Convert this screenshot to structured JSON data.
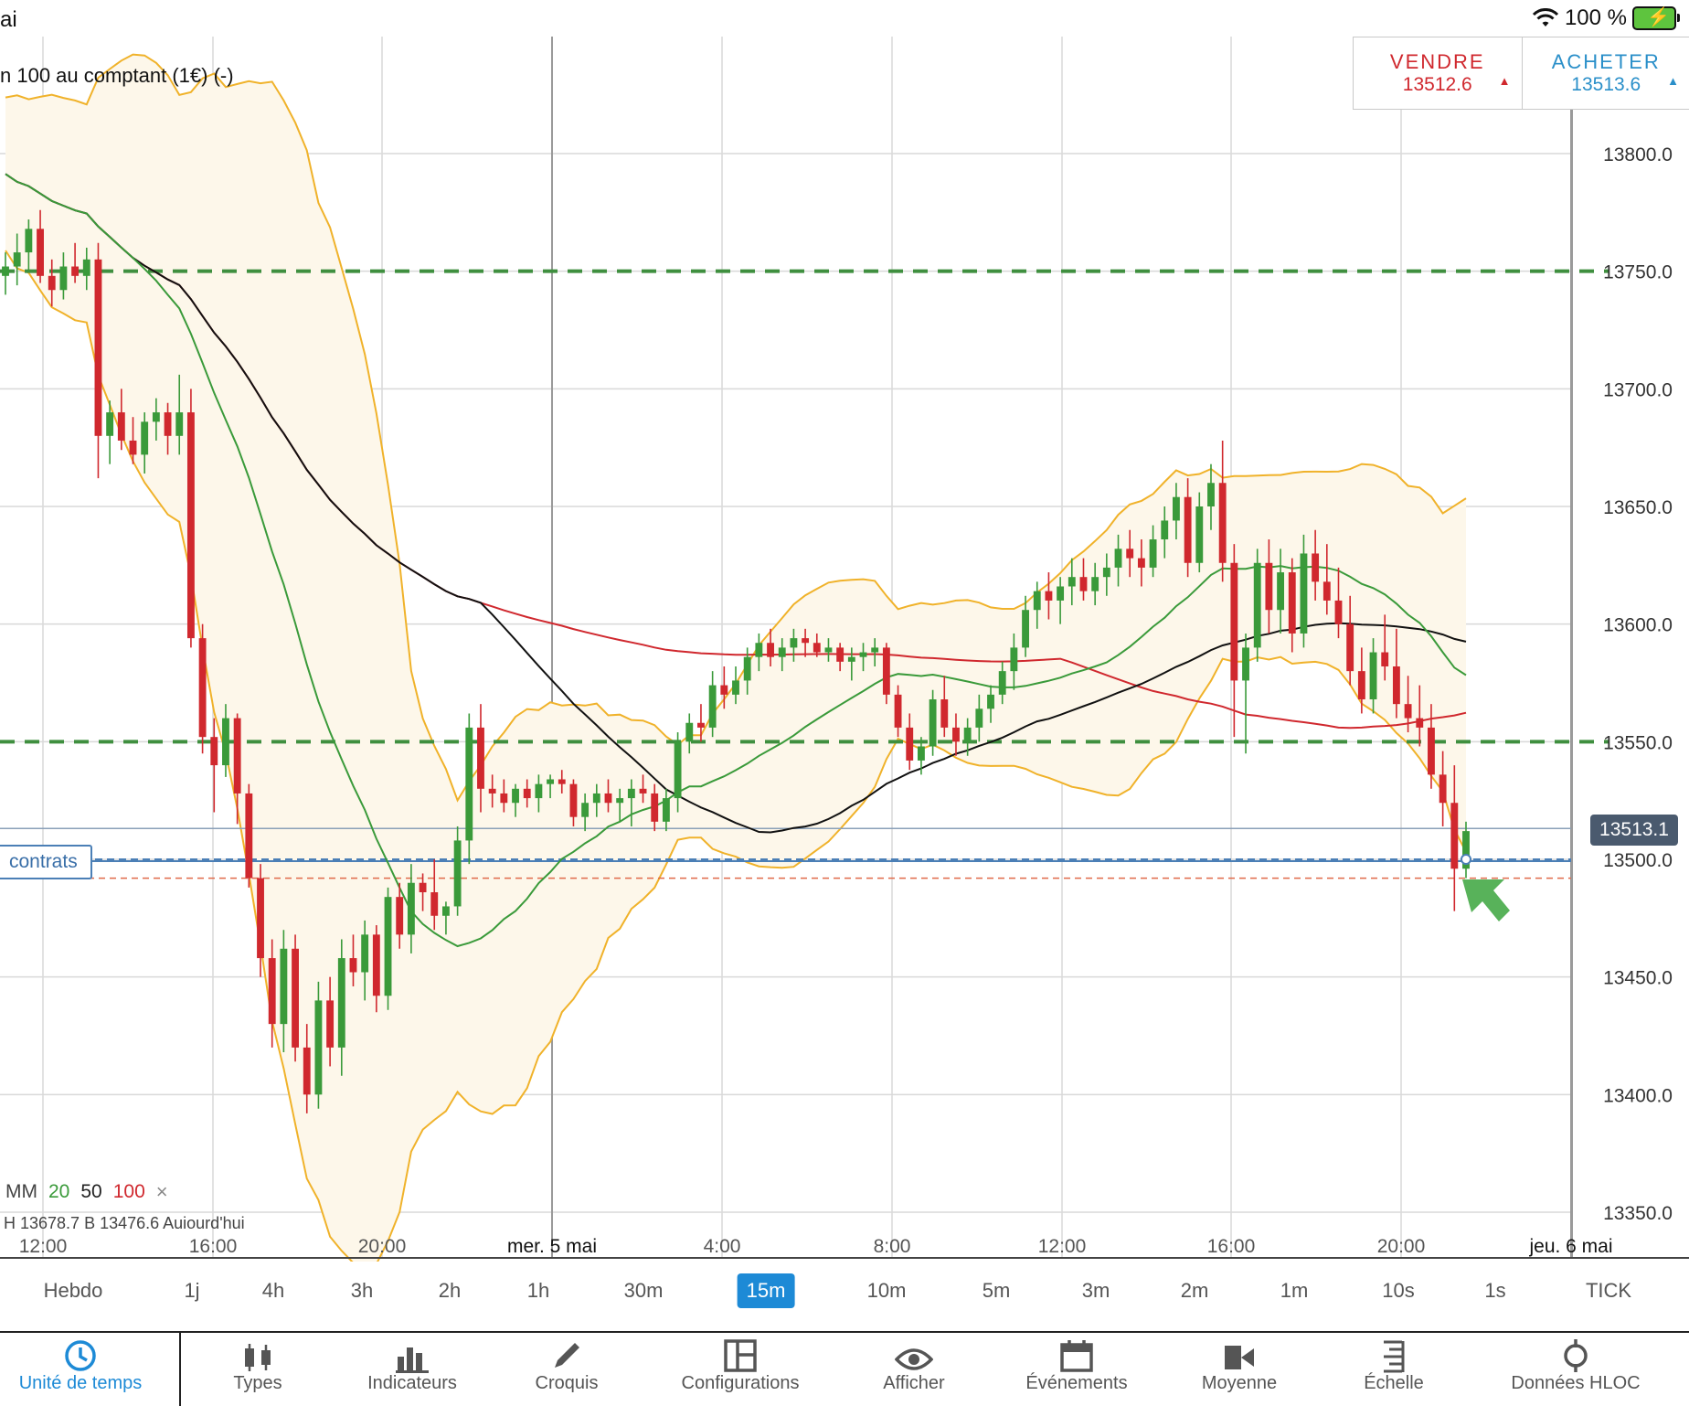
{
  "status": {
    "left_text": "ai",
    "battery_text": "100 %"
  },
  "instrument_label": "n 100 au comptant (1€) (-)",
  "trade": {
    "sell_label": "VENDRE",
    "sell_price": "13512.6",
    "buy_label": "ACHETER",
    "buy_price": "13513.6"
  },
  "current_price_tag": "13513.1",
  "position_label": "contrats",
  "legend": {
    "mm": "MM",
    "p20": "20",
    "p50": "50",
    "p100": "100",
    "close": "×"
  },
  "hloc_text": "H 13678.7    B 13476.6    Aujourd'hui",
  "colors": {
    "up": "#3a9a3a",
    "down": "#d0282e",
    "band": "#f0b22a",
    "mm20": "#3a9a3a",
    "mm50": "#111111",
    "mm100": "#d0282e",
    "accent": "#1d8ad6"
  },
  "chart_data": {
    "type": "candlestick",
    "y_ticks": [
      "13800.0",
      "13750.0",
      "13700.0",
      "13650.0",
      "13600.0",
      "13550.0",
      "13500.0",
      "13450.0",
      "13400.0",
      "13350.0"
    ],
    "y_range": [
      13340,
      13850
    ],
    "x_ticks": [
      "12:00",
      "16:00",
      "20:00",
      "mer. 5 mai",
      "4:00",
      "8:00",
      "12:00",
      "16:00",
      "20:00",
      "jeu. 6 mai"
    ],
    "horizontal_levels": [
      13750,
      13550
    ],
    "current_price": 13513.1,
    "order_level": 13500,
    "stop_level": 13492,
    "candles": [
      [
        13748,
        13758,
        13740,
        13752
      ],
      [
        13752,
        13766,
        13744,
        13758
      ],
      [
        13758,
        13772,
        13750,
        13768
      ],
      [
        13768,
        13776,
        13745,
        13748
      ],
      [
        13748,
        13755,
        13735,
        13742
      ],
      [
        13742,
        13758,
        13738,
        13752
      ],
      [
        13752,
        13762,
        13745,
        13748
      ],
      [
        13748,
        13760,
        13742,
        13755
      ],
      [
        13755,
        13762,
        13662,
        13680
      ],
      [
        13680,
        13695,
        13668,
        13690
      ],
      [
        13690,
        13700,
        13674,
        13678
      ],
      [
        13678,
        13688,
        13668,
        13672
      ],
      [
        13672,
        13690,
        13664,
        13686
      ],
      [
        13686,
        13696,
        13678,
        13690
      ],
      [
        13690,
        13694,
        13672,
        13680
      ],
      [
        13680,
        13706,
        13672,
        13690
      ],
      [
        13690,
        13700,
        13590,
        13594
      ],
      [
        13594,
        13600,
        13545,
        13552
      ],
      [
        13552,
        13560,
        13520,
        13540
      ],
      [
        13540,
        13566,
        13535,
        13560
      ],
      [
        13560,
        13562,
        13515,
        13528
      ],
      [
        13528,
        13532,
        13488,
        13492
      ],
      [
        13492,
        13498,
        13450,
        13458
      ],
      [
        13458,
        13466,
        13420,
        13430
      ],
      [
        13430,
        13470,
        13418,
        13462
      ],
      [
        13462,
        13468,
        13414,
        13420
      ],
      [
        13420,
        13430,
        13392,
        13400
      ],
      [
        13400,
        13448,
        13394,
        13440
      ],
      [
        13440,
        13450,
        13412,
        13420
      ],
      [
        13420,
        13466,
        13408,
        13458
      ],
      [
        13458,
        13468,
        13446,
        13452
      ],
      [
        13452,
        13474,
        13440,
        13468
      ],
      [
        13468,
        13472,
        13435,
        13442
      ],
      [
        13442,
        13488,
        13436,
        13484
      ],
      [
        13484,
        13490,
        13462,
        13468
      ],
      [
        13468,
        13498,
        13460,
        13490
      ],
      [
        13490,
        13494,
        13478,
        13486
      ],
      [
        13486,
        13500,
        13470,
        13476
      ],
      [
        13476,
        13482,
        13468,
        13480
      ],
      [
        13480,
        13514,
        13476,
        13508
      ],
      [
        13508,
        13562,
        13498,
        13556
      ],
      [
        13556,
        13566,
        13520,
        13530
      ],
      [
        13530,
        13536,
        13522,
        13528
      ],
      [
        13528,
        13534,
        13520,
        13524
      ],
      [
        13524,
        13532,
        13518,
        13530
      ],
      [
        13530,
        13534,
        13522,
        13526
      ],
      [
        13526,
        13536,
        13520,
        13532
      ],
      [
        13532,
        13536,
        13526,
        13534
      ],
      [
        13534,
        13538,
        13528,
        13532
      ],
      [
        13532,
        13534,
        13514,
        13518
      ],
      [
        13518,
        13528,
        13512,
        13524
      ],
      [
        13524,
        13532,
        13518,
        13528
      ],
      [
        13528,
        13534,
        13520,
        13524
      ],
      [
        13524,
        13530,
        13516,
        13526
      ],
      [
        13526,
        13534,
        13514,
        13530
      ],
      [
        13530,
        13536,
        13524,
        13528
      ],
      [
        13528,
        13532,
        13512,
        13516
      ],
      [
        13516,
        13530,
        13512,
        13526
      ],
      [
        13526,
        13554,
        13520,
        13550
      ],
      [
        13550,
        13562,
        13545,
        13558
      ],
      [
        13558,
        13566,
        13550,
        13556
      ],
      [
        13556,
        13580,
        13552,
        13574
      ],
      [
        13574,
        13582,
        13564,
        13570
      ],
      [
        13570,
        13582,
        13566,
        13576
      ],
      [
        13576,
        13590,
        13570,
        13586
      ],
      [
        13586,
        13596,
        13580,
        13592
      ],
      [
        13592,
        13598,
        13582,
        13586
      ],
      [
        13586,
        13594,
        13580,
        13590
      ],
      [
        13590,
        13598,
        13584,
        13594
      ],
      [
        13594,
        13598,
        13586,
        13592
      ],
      [
        13592,
        13596,
        13586,
        13588
      ],
      [
        13588,
        13594,
        13584,
        13590
      ],
      [
        13590,
        13592,
        13580,
        13584
      ],
      [
        13584,
        13590,
        13576,
        13586
      ],
      [
        13586,
        13592,
        13580,
        13588
      ],
      [
        13588,
        13594,
        13582,
        13590
      ],
      [
        13590,
        13592,
        13566,
        13570
      ],
      [
        13570,
        13574,
        13552,
        13556
      ],
      [
        13556,
        13562,
        13538,
        13542
      ],
      [
        13542,
        13552,
        13536,
        13548
      ],
      [
        13548,
        13572,
        13544,
        13568
      ],
      [
        13568,
        13578,
        13552,
        13556
      ],
      [
        13556,
        13562,
        13544,
        13550
      ],
      [
        13550,
        13560,
        13544,
        13556
      ],
      [
        13556,
        13570,
        13550,
        13564
      ],
      [
        13564,
        13574,
        13558,
        13570
      ],
      [
        13570,
        13584,
        13566,
        13580
      ],
      [
        13580,
        13596,
        13572,
        13590
      ],
      [
        13590,
        13612,
        13586,
        13606
      ],
      [
        13606,
        13618,
        13598,
        13614
      ],
      [
        13614,
        13622,
        13602,
        13610
      ],
      [
        13610,
        13620,
        13600,
        13616
      ],
      [
        13616,
        13628,
        13608,
        13620
      ],
      [
        13620,
        13628,
        13610,
        13614
      ],
      [
        13614,
        13626,
        13608,
        13620
      ],
      [
        13620,
        13630,
        13612,
        13624
      ],
      [
        13624,
        13638,
        13616,
        13632
      ],
      [
        13632,
        13640,
        13620,
        13628
      ],
      [
        13628,
        13636,
        13616,
        13624
      ],
      [
        13624,
        13642,
        13620,
        13636
      ],
      [
        13636,
        13650,
        13628,
        13644
      ],
      [
        13644,
        13660,
        13636,
        13654
      ],
      [
        13654,
        13662,
        13620,
        13626
      ],
      [
        13626,
        13656,
        13622,
        13650
      ],
      [
        13650,
        13668,
        13640,
        13660
      ],
      [
        13660,
        13678,
        13618,
        13626
      ],
      [
        13626,
        13634,
        13552,
        13576
      ],
      [
        13576,
        13596,
        13545,
        13590
      ],
      [
        13590,
        13632,
        13584,
        13626
      ],
      [
        13626,
        13636,
        13596,
        13606
      ],
      [
        13606,
        13632,
        13596,
        13622
      ],
      [
        13622,
        13628,
        13588,
        13596
      ],
      [
        13596,
        13638,
        13590,
        13630
      ],
      [
        13630,
        13640,
        13610,
        13618
      ],
      [
        13618,
        13634,
        13604,
        13610
      ],
      [
        13610,
        13624,
        13594,
        13600
      ],
      [
        13600,
        13612,
        13574,
        13580
      ],
      [
        13580,
        13590,
        13562,
        13568
      ],
      [
        13568,
        13594,
        13562,
        13588
      ],
      [
        13588,
        13604,
        13576,
        13582
      ],
      [
        13582,
        13598,
        13560,
        13566
      ],
      [
        13566,
        13578,
        13554,
        13560
      ],
      [
        13560,
        13574,
        13548,
        13556
      ],
      [
        13556,
        13566,
        13530,
        13536
      ],
      [
        13536,
        13546,
        13514,
        13524
      ],
      [
        13524,
        13540,
        13478,
        13496
      ],
      [
        13496,
        13516,
        13492,
        13512
      ]
    ]
  },
  "timeframes": [
    "Hebdo",
    "1j",
    "4h",
    "3h",
    "2h",
    "1h",
    "30m",
    "15m",
    "10m",
    "5m",
    "3m",
    "2m",
    "1m",
    "10s",
    "1s",
    "TICK"
  ],
  "active_timeframe": "15m",
  "tabs": [
    {
      "label": "Unité de temps",
      "icon": "clock-icon"
    },
    {
      "label": "Types",
      "icon": "candles-icon"
    },
    {
      "label": "Indicateurs",
      "icon": "bars-icon"
    },
    {
      "label": "Croquis",
      "icon": "pencil-icon"
    },
    {
      "label": "Configurations",
      "icon": "layout-icon"
    },
    {
      "label": "Afficher",
      "icon": "eye-icon"
    },
    {
      "label": "Événements",
      "icon": "calendar-icon"
    },
    {
      "label": "Moyenne",
      "icon": "camera-icon"
    },
    {
      "label": "Échelle",
      "icon": "scale-icon"
    },
    {
      "label": "Données HLOC",
      "icon": "crosshair-icon"
    }
  ]
}
